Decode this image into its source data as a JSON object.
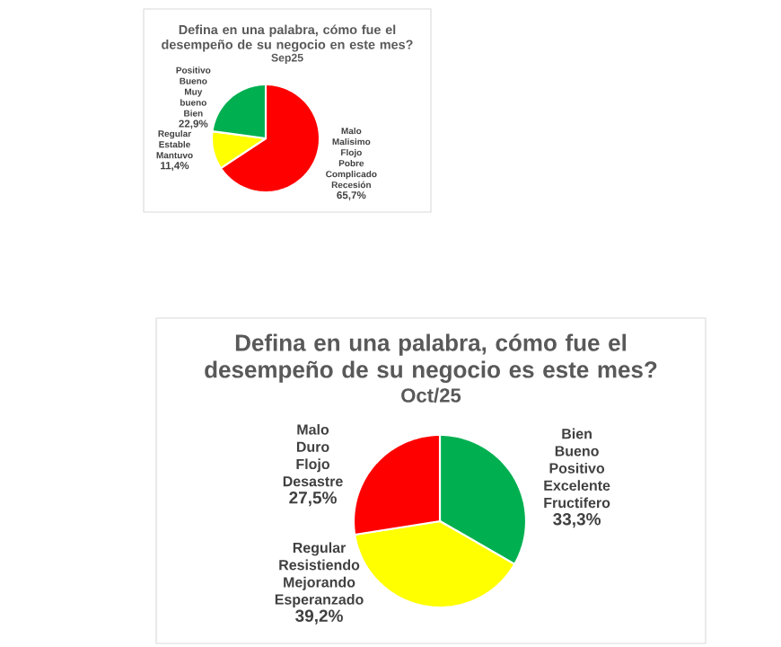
{
  "chart_data": [
    {
      "type": "pie",
      "title": "Defina en una palabra, cómo fue el desempeño de su negocio en este mes?",
      "subtitle": "Sep25",
      "categories": [
        "Malo Malisimo Flojo Pobre Complicado Recesión",
        "Regular Estable Mantuvo",
        "Positivo Bueno Muy bueno Bien"
      ],
      "values": [
        65.7,
        11.4,
        22.9
      ],
      "value_labels": [
        "65,7%",
        "11,4%",
        "22,9%"
      ],
      "colors": [
        "#ff0000",
        "#ffff00",
        "#00b050"
      ]
    },
    {
      "type": "pie",
      "title": "Defina en una palabra, cómo fue el desempeño de su negocio es este mes?",
      "subtitle": "Oct/25",
      "categories": [
        "Bien Bueno Positivo Excelente Fructifero",
        "Regular Resistiendo Mejorando Esperanzado",
        "Malo Duro Flojo Desastre"
      ],
      "values": [
        33.3,
        39.2,
        27.5
      ],
      "value_labels": [
        "33,3%",
        "39,2%",
        "27,5%"
      ],
      "colors": [
        "#00b050",
        "#ffff00",
        "#ff0000"
      ]
    }
  ]
}
